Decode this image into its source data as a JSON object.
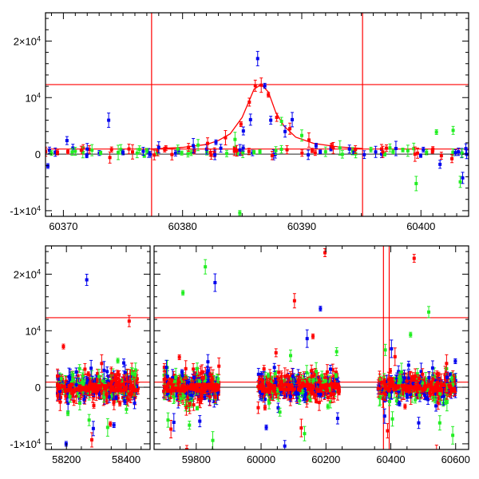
{
  "colors": {
    "red": "#ff0000",
    "green": "#22ee22",
    "blue": "#0000ee",
    "axes": "#000000",
    "background": "#ffffff"
  },
  "chart_data": [
    {
      "type": "scatter",
      "title": "",
      "xlabel": "",
      "ylabel": "",
      "xlim": [
        60368.5,
        60404
      ],
      "ylim": [
        -11000,
        25000
      ],
      "y_ticks": [
        -10000,
        0,
        10000,
        20000
      ],
      "y_tick_labels": [
        "-1×10⁴",
        "0",
        "10⁴",
        "2×10⁴"
      ],
      "x_ticks": [
        60370,
        60380,
        60390,
        60400
      ],
      "x_tick_labels": [
        "60370",
        "60380",
        "60390",
        "60400"
      ],
      "reference_lines": {
        "vertical": [
          60377.4,
          60395.1
        ],
        "horizontal": [
          900,
          12300
        ]
      },
      "model_curve": {
        "color": "red",
        "x": [
          60377.4,
          60380,
          60382,
          60383,
          60384,
          60385,
          60385.5,
          60386,
          60386.6,
          60387.2,
          60387.8,
          60388.5,
          60389.5,
          60391,
          60393,
          60395.1
        ],
        "y": [
          900,
          1200,
          1700,
          2400,
          3600,
          6500,
          9000,
          11500,
          12300,
          11000,
          7500,
          5000,
          3000,
          1900,
          1300,
          1000
        ]
      },
      "series": [
        {
          "color": "red",
          "x": [
            60369.5,
            60371.5,
            60373.9,
            60375.8,
            60378.5,
            60380.5,
            60382.1,
            60383.6,
            60384.9,
            60385.6,
            60386.1,
            60386.6,
            60387.2,
            60387.9,
            60389.0,
            60390.6,
            60392.5,
            60394.5,
            60396.8,
            60399.5,
            60401.0,
            60402.6
          ],
          "y": [
            300,
            700,
            -600,
            400,
            800,
            1200,
            1900,
            2900,
            5300,
            9200,
            12100,
            12200,
            10500,
            6500,
            4500,
            2500,
            1500,
            800,
            400,
            0,
            900,
            -800
          ]
        },
        {
          "color": "green",
          "x": [
            60369.0,
            60371.0,
            60372.4,
            60374.6,
            60377.0,
            60379.6,
            60381.3,
            60384.4,
            60384.8,
            60388.3,
            60390.0,
            60393.2,
            60395.8,
            60397.4,
            60398.9,
            60399.6,
            60401.3,
            60402.7,
            60403.3
          ],
          "y": [
            200,
            500,
            700,
            300,
            600,
            900,
            1600,
            2600,
            -10400,
            5800,
            3300,
            1100,
            800,
            1100,
            600,
            -5200,
            3900,
            4200,
            -4900
          ]
        },
        {
          "color": "blue",
          "x": [
            60368.7,
            60370.3,
            60372.0,
            60373.8,
            60375.0,
            60376.7,
            60378.0,
            60380.9,
            60382.8,
            60385.1,
            60385.7,
            60386.3,
            60386.9,
            60387.4,
            60388.6,
            60389.2,
            60391.2,
            60394.0,
            60396.2,
            60397.9,
            60400.2,
            60401.6,
            60403.5
          ],
          "y": [
            -2100,
            2400,
            900,
            6000,
            300,
            500,
            1200,
            1500,
            2100,
            4100,
            6100,
            16900,
            12100,
            6000,
            4000,
            6100,
            1500,
            900,
            400,
            1000,
            800,
            -1800,
            -4200
          ]
        }
      ]
    },
    {
      "type": "scatter",
      "title": "",
      "xlabel": "",
      "ylabel": "",
      "ylim": [
        -11000,
        25000
      ],
      "y_ticks": [
        -10000,
        0,
        10000,
        20000
      ],
      "y_tick_labels": [
        "-1×10⁴",
        "0",
        "10⁴",
        "2×10⁴"
      ],
      "x_tick_labels": [
        "58200",
        "58400",
        "59800",
        "60000",
        "60200",
        "60400",
        "60600"
      ],
      "panels": [
        {
          "xlim": [
            58130,
            58480
          ],
          "x_ticks": [
            58200,
            58400
          ]
        },
        {
          "xlim": [
            59670,
            60640
          ],
          "x_ticks": [
            59800,
            60000,
            60200,
            60400,
            60600
          ]
        }
      ],
      "reference_lines": {
        "vertical": [
          60377.4,
          60395.1
        ],
        "horizontal": [
          900,
          12300
        ]
      },
      "seasons": [
        {
          "x_range": [
            58170,
            58440
          ],
          "band_color": "red"
        },
        {
          "x_range": [
            59700,
            59870
          ],
          "band_color": "red"
        },
        {
          "x_range": [
            59990,
            60240
          ],
          "band_color": "red"
        },
        {
          "x_range": [
            60360,
            60600
          ],
          "band_color": "red"
        }
      ],
      "series": [
        {
          "color": "red",
          "x": [
            58190,
            58225,
            58262,
            58285,
            58318,
            58347,
            58376,
            58410,
            58430,
            59722,
            59748,
            59771,
            59791,
            59818,
            59842,
            60012,
            60046,
            60081,
            60103,
            60124,
            60160,
            60197,
            60221,
            60390,
            60413,
            60444,
            60472,
            60498,
            60541,
            60572
          ],
          "y": [
            7200,
            -2500,
            3200,
            -9300,
            4200,
            -6500,
            2200,
            11700,
            -1800,
            -7400,
            5300,
            -11000,
            3200,
            2700,
            -1700,
            -3600,
            6100,
            2100,
            15300,
            -7200,
            9000,
            23800,
            3100,
            -7700,
            5400,
            -3400,
            22800,
            2300,
            -11500,
            4200
          ]
        },
        {
          "color": "green",
          "x": [
            58205,
            58244,
            58276,
            58309,
            58338,
            58372,
            58401,
            58421,
            59713,
            59737,
            59759,
            59779,
            59803,
            59828,
            59851,
            60022,
            60058,
            60091,
            60134,
            60170,
            60206,
            60233,
            60383,
            60405,
            60433,
            60461,
            60489,
            60517,
            60551,
            60591
          ],
          "y": [
            -4600,
            3300,
            -5800,
            1900,
            -7100,
            4700,
            -3900,
            2400,
            -5800,
            1800,
            16700,
            -6700,
            3300,
            21300,
            -9400,
            2100,
            -4400,
            5600,
            -8200,
            2800,
            -3400,
            6300,
            6600,
            -5600,
            2700,
            9300,
            -1400,
            13300,
            -6300,
            -8500
          ]
        },
        {
          "color": "blue",
          "x": [
            58199,
            58233,
            58268,
            58290,
            58326,
            58359,
            58392,
            58428,
            59708,
            59731,
            59756,
            59784,
            59811,
            59836,
            59858,
            60016,
            60041,
            60073,
            60109,
            60142,
            60183,
            60214,
            60236,
            60381,
            60402,
            60427,
            60455,
            60486,
            60529,
            60563,
            60599
          ],
          "y": [
            -10000,
            2700,
            19000,
            -7300,
            3000,
            -6700,
            4300,
            -2800,
            3500,
            -6200,
            2700,
            -1400,
            -6000,
            4500,
            18500,
            -7100,
            3500,
            -10400,
            -1200,
            8600,
            13900,
            3200,
            -5500,
            -5100,
            6800,
            -2900,
            3900,
            -6300,
            3400,
            -1600,
            4600
          ]
        }
      ]
    }
  ]
}
